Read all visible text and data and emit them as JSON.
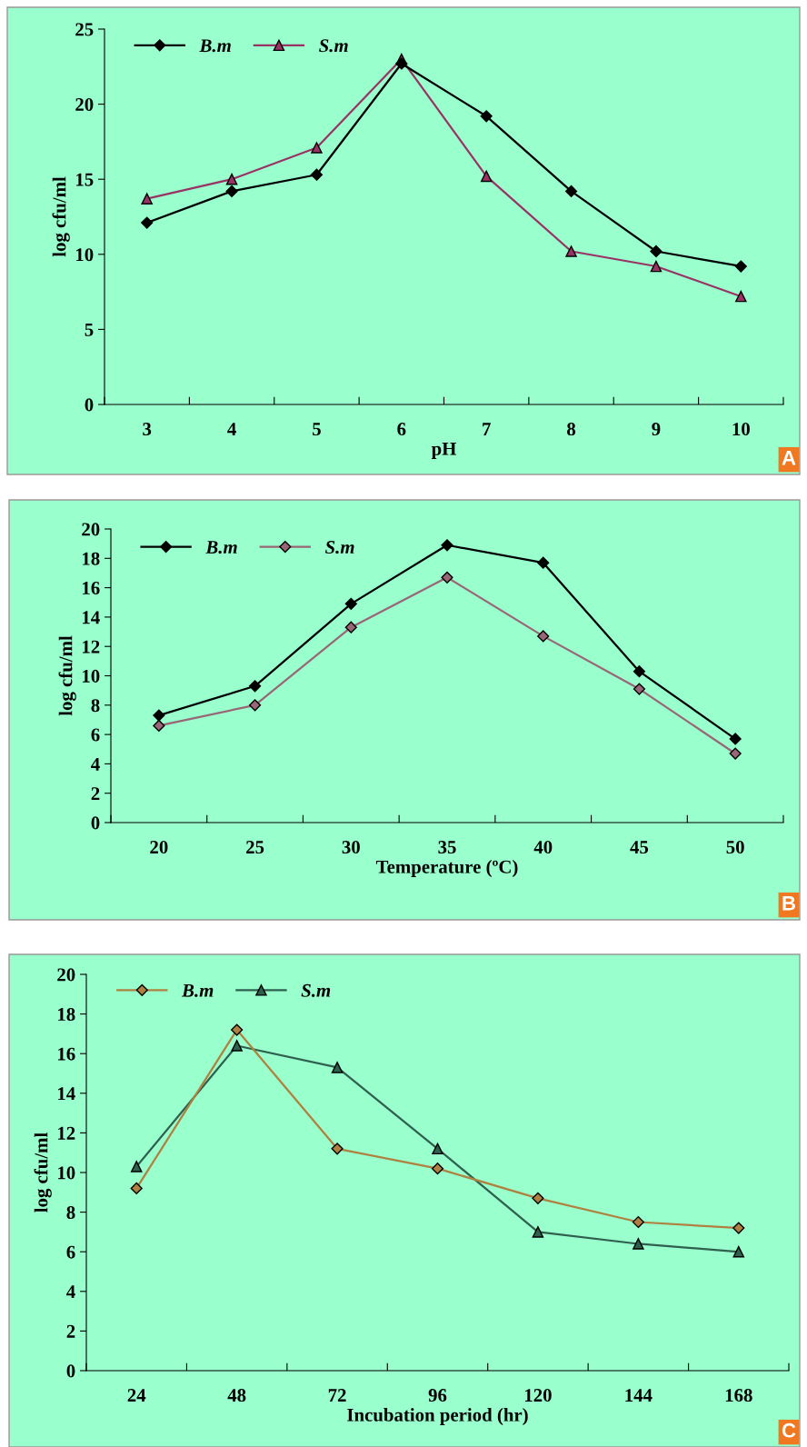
{
  "chart_data": [
    {
      "type": "line",
      "xlabel": "pH",
      "ylabel": "log cfu/ml",
      "categories": [
        "3",
        "4",
        "5",
        "6",
        "7",
        "8",
        "9",
        "10"
      ],
      "ylim": [
        0,
        25
      ],
      "yticks": [
        0,
        5,
        10,
        15,
        20,
        25
      ],
      "grid": false,
      "legend": "top left",
      "annotations": [
        "A"
      ],
      "series": [
        {
          "name": "B.m",
          "color": "#000000",
          "marker": "diamond",
          "values": [
            12.1,
            14.2,
            15.3,
            22.7,
            19.2,
            14.2,
            10.2,
            9.2
          ]
        },
        {
          "name": "S.m",
          "color": "#993366",
          "marker": "triangle",
          "values": [
            13.7,
            15.0,
            17.1,
            23.0,
            15.2,
            10.2,
            9.2,
            7.2
          ]
        }
      ]
    },
    {
      "type": "line",
      "xlabel": "Temperature (ºC)",
      "ylabel": "log cfu/ml",
      "categories": [
        "20",
        "25",
        "30",
        "35",
        "40",
        "45",
        "50"
      ],
      "ylim": [
        0,
        20
      ],
      "yticks": [
        0,
        2,
        4,
        6,
        8,
        10,
        12,
        14,
        16,
        18,
        20
      ],
      "grid": false,
      "legend": "top left",
      "annotations": [
        "B"
      ],
      "series": [
        {
          "name": "B.m",
          "color": "#000000",
          "marker": "diamond",
          "values": [
            7.3,
            9.3,
            14.9,
            18.9,
            17.7,
            10.3,
            5.7
          ]
        },
        {
          "name": "S.m",
          "color": "#996677",
          "marker": "diamond",
          "values": [
            6.6,
            8.0,
            13.3,
            16.7,
            12.7,
            9.1,
            4.7
          ]
        }
      ]
    },
    {
      "type": "line",
      "xlabel": "Incubation period (hr)",
      "ylabel": "log cfu/ml",
      "categories": [
        "24",
        "48",
        "72",
        "96",
        "120",
        "144",
        "168"
      ],
      "ylim": [
        0,
        20
      ],
      "yticks": [
        0,
        2,
        4,
        6,
        8,
        10,
        12,
        14,
        16,
        18,
        20
      ],
      "grid": false,
      "legend": "top left",
      "annotations": [
        "C"
      ],
      "series": [
        {
          "name": "B.m",
          "color": "#b08040",
          "marker": "diamond",
          "values": [
            9.2,
            17.2,
            11.2,
            10.2,
            8.7,
            7.5,
            7.2
          ]
        },
        {
          "name": "S.m",
          "color": "#2f5f4f",
          "marker": "triangle",
          "values": [
            10.3,
            16.4,
            15.3,
            11.2,
            7.0,
            6.4,
            6.0
          ]
        }
      ]
    }
  ]
}
